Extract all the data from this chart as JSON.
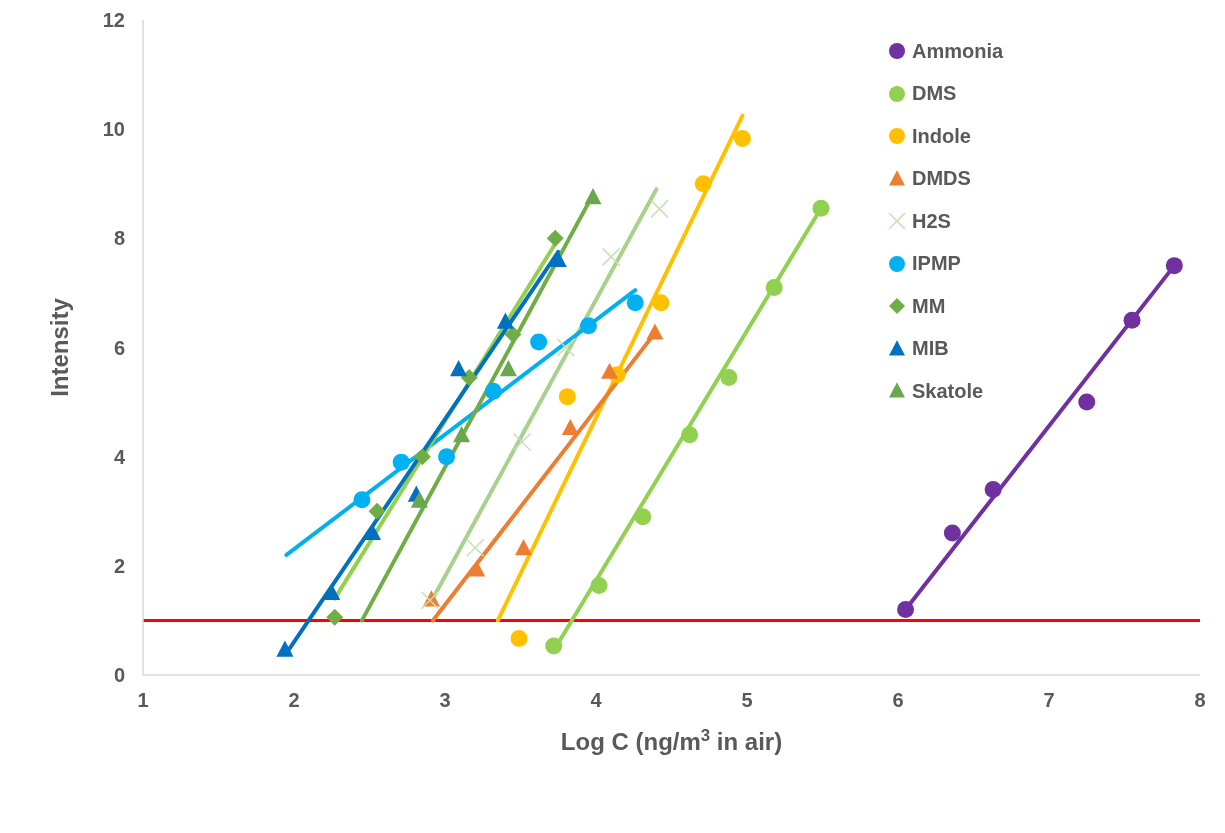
{
  "chart_data": {
    "type": "scatter",
    "xlabel": "Log C (ng/m$^{3}$ in air)",
    "ylabel": "Intensity",
    "xlim": [
      1,
      8
    ],
    "xticks": [
      1,
      2,
      3,
      4,
      5,
      6,
      7,
      8
    ],
    "ylim": [
      0,
      12
    ],
    "yticks": [
      0,
      2,
      4,
      6,
      8,
      10,
      12
    ],
    "legend": "top right",
    "ref_lines": [
      {
        "axis": "y",
        "value": 1,
        "color": "#ff0000"
      }
    ],
    "series": [
      {
        "name": "Ammonia",
        "color": "#7030a0",
        "marker": "circle",
        "x": [
          6.05,
          6.36,
          6.63,
          7.25,
          7.55,
          7.83
        ],
        "values": [
          1.2,
          2.6,
          3.4,
          5.0,
          6.5,
          7.5
        ]
      },
      {
        "name": "DMS",
        "color": "#92d050",
        "marker": "circle",
        "x": [
          3.72,
          4.02,
          4.31,
          4.62,
          4.88,
          5.18,
          5.49
        ],
        "values": [
          0.53,
          1.64,
          2.9,
          4.4,
          5.45,
          7.1,
          8.55
        ]
      },
      {
        "name": "Indole",
        "color": "#ffc000",
        "marker": "circle",
        "x": [
          3.49,
          3.81,
          4.14,
          4.43,
          4.71,
          4.97
        ],
        "values": [
          0.67,
          5.1,
          5.5,
          6.82,
          9.0,
          9.83
        ]
      },
      {
        "name": "DMDS",
        "color": "#ed7d31",
        "marker": "triangle",
        "x": [
          2.91,
          3.21,
          3.52,
          3.83,
          4.09,
          4.39
        ],
        "values": [
          1.38,
          1.93,
          2.32,
          4.52,
          5.55,
          6.27
        ]
      },
      {
        "name": "H2S",
        "color": "#c5e0b4",
        "marker": "cross",
        "x": [
          2.9,
          3.2,
          3.51,
          3.8,
          4.1,
          4.42
        ],
        "values": [
          1.37,
          2.33,
          4.27,
          6.0,
          7.66,
          8.54
        ]
      },
      {
        "name": "IPMP",
        "color": "#00b0f0",
        "marker": "circle",
        "x": [
          2.45,
          2.71,
          3.01,
          3.32,
          3.62,
          3.95,
          4.26
        ],
        "values": [
          3.21,
          3.9,
          4.0,
          5.2,
          6.1,
          6.4,
          6.82
        ]
      },
      {
        "name": "MM",
        "color": "#70ad47",
        "marker": "diamond",
        "x": [
          2.27,
          2.55,
          2.85,
          3.16,
          3.45,
          3.73
        ],
        "values": [
          1.06,
          3.0,
          4.0,
          5.45,
          6.24,
          8.0
        ]
      },
      {
        "name": "MIB",
        "color": "#0070c0",
        "marker": "triangle",
        "x": [
          1.94,
          2.25,
          2.52,
          2.81,
          3.09,
          3.4,
          3.75
        ],
        "values": [
          0.46,
          1.5,
          2.6,
          3.3,
          5.6,
          6.47,
          7.6
        ]
      },
      {
        "name": "Skatole",
        "color": "#6aa84f",
        "marker": "triangle",
        "x": [
          2.83,
          3.11,
          3.42,
          3.98
        ],
        "values": [
          3.19,
          4.39,
          5.6,
          8.75
        ]
      },
      {
        "type": "line",
        "color": "#7030a0",
        "x": [
          6.05,
          7.83
        ],
        "values": [
          1.2,
          7.5
        ]
      },
      {
        "type": "line",
        "color": "#92d050",
        "x": [
          3.72,
          5.49
        ],
        "values": [
          0.45,
          8.55
        ]
      },
      {
        "type": "line",
        "color": "#ffc000",
        "x": [
          3.35,
          4.97
        ],
        "values": [
          1.0,
          10.25
        ]
      },
      {
        "type": "line",
        "color": "#ed7d31",
        "x": [
          2.92,
          4.4
        ],
        "values": [
          1.0,
          6.3
        ]
      },
      {
        "type": "line",
        "color": "#a9d18e",
        "x": [
          2.9,
          4.4
        ],
        "values": [
          1.3,
          8.9
        ]
      },
      {
        "type": "line",
        "color": "#00b0f0",
        "x": [
          1.95,
          4.26
        ],
        "values": [
          2.2,
          7.05
        ]
      },
      {
        "type": "line",
        "color": "#92d050",
        "x": [
          2.27,
          3.73
        ],
        "values": [
          1.4,
          7.9
        ]
      },
      {
        "type": "line",
        "color": "#0070c0",
        "x": [
          1.95,
          3.75
        ],
        "values": [
          0.4,
          7.75
        ]
      },
      {
        "type": "line",
        "color": "#70ad47",
        "x": [
          2.45,
          3.98
        ],
        "values": [
          1.0,
          8.8
        ]
      }
    ]
  }
}
